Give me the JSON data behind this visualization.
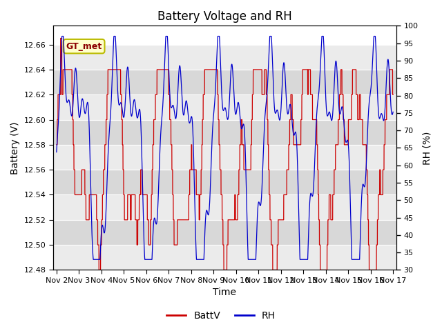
{
  "title": "Battery Voltage and RH",
  "xlabel": "Time",
  "ylabel_left": "Battery (V)",
  "ylabel_right": "RH (%)",
  "ylim_left": [
    12.48,
    12.675
  ],
  "ylim_right": [
    30,
    100
  ],
  "yticks_left": [
    12.48,
    12.5,
    12.52,
    12.54,
    12.56,
    12.58,
    12.6,
    12.62,
    12.64,
    12.66
  ],
  "yticks_right": [
    30,
    35,
    40,
    45,
    50,
    55,
    60,
    65,
    70,
    75,
    80,
    85,
    90,
    95,
    100
  ],
  "x_labels": [
    "Nov 2",
    "Nov 3",
    "Nov 4",
    "Nov 5",
    "Nov 6",
    "Nov 7",
    "Nov 8",
    "Nov 9",
    "Nov 10",
    "Nov 11",
    "Nov 12",
    "Nov 13",
    "Nov 14",
    "Nov 15",
    "Nov 16",
    "Nov 17"
  ],
  "annotation_text": "GT_met",
  "color_battv": "#cc0000",
  "color_rh": "#0000cc",
  "bg_color": "#ffffff",
  "band_light": "#ebebeb",
  "band_dark": "#d8d8d8",
  "legend_labels": [
    "BattV",
    "RH"
  ],
  "title_fontsize": 12,
  "axis_fontsize": 10,
  "tick_fontsize": 8
}
